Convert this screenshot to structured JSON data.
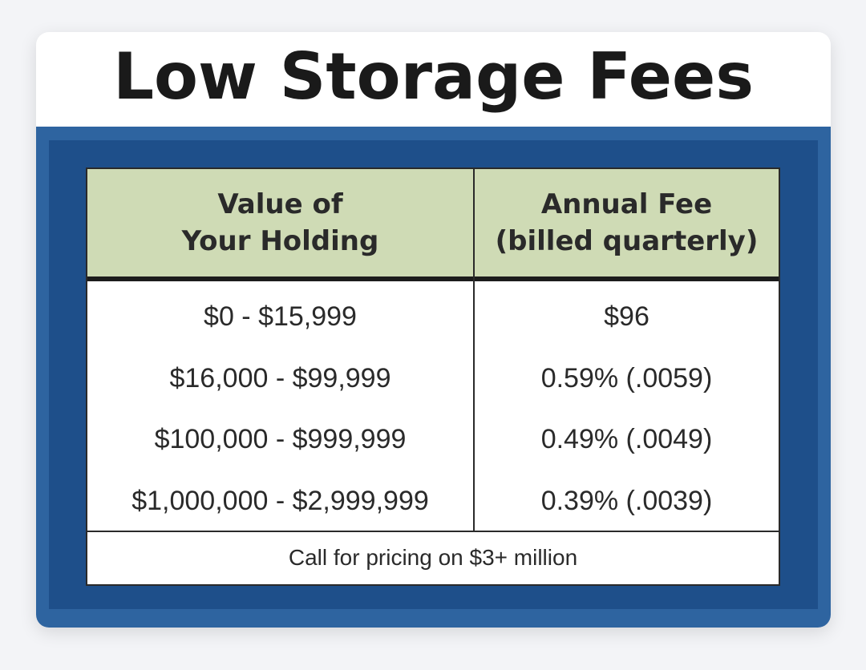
{
  "title": "Low Storage Fees",
  "table": {
    "headers": [
      {
        "line1": "Value of",
        "line2": "Your Holding"
      },
      {
        "line1": "Annual Fee",
        "line2": "(billed quarterly)"
      }
    ],
    "rows": [
      {
        "value": "$0 - $15,999",
        "fee": "$96"
      },
      {
        "value": "$16,000 - $99,999",
        "fee": "0.59% (.0059)"
      },
      {
        "value": "$100,000 - $999,999",
        "fee": "0.49% (.0049)"
      },
      {
        "value": "$1,000,000 - $2,999,999",
        "fee": "0.39% (.0039)"
      }
    ],
    "footer": "Call for pricing on $3+ million"
  },
  "colors": {
    "frame_blue": "#2e64a0",
    "inner_blue": "#1e4f8a",
    "header_green": "#cfdbb5"
  }
}
